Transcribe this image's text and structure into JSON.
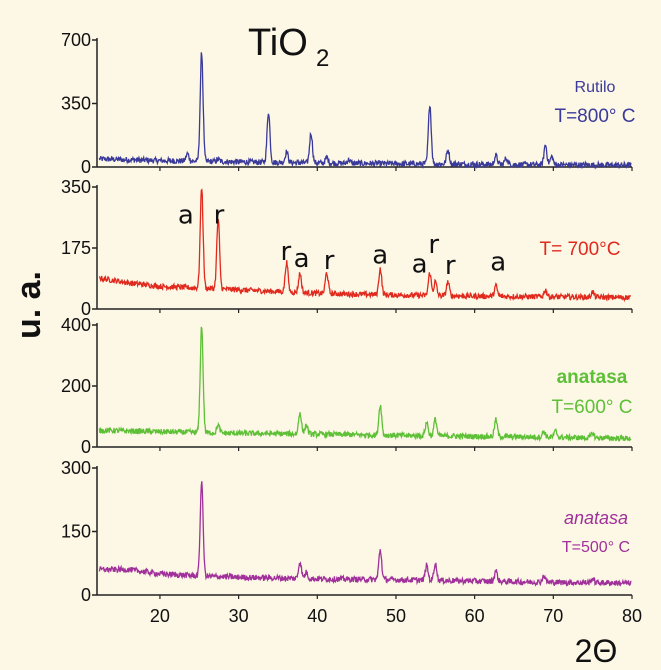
{
  "chart_data": {
    "type": "line",
    "title": "TiO",
    "title_subscript": "2",
    "ylabel": "u. a.",
    "xlabel": "2Θ",
    "xlim": [
      12,
      80
    ],
    "x_ticks": [
      "20",
      "30",
      "40",
      "50",
      "60",
      "70",
      "80"
    ],
    "x_tick_values": [
      20,
      30,
      40,
      50,
      60,
      70,
      80
    ],
    "grid": false,
    "panels": [
      {
        "labels": [
          "Rutilo",
          "T=800° C"
        ],
        "color": "#3a3a9a",
        "ylim": [
          0,
          700
        ],
        "y_ticks": [
          "0",
          "350",
          "700"
        ],
        "y_tick_values": [
          0,
          350,
          700
        ],
        "baseline": [
          [
            12,
            45
          ],
          [
            20,
            35
          ],
          [
            30,
            28
          ],
          [
            40,
            22
          ],
          [
            50,
            18
          ],
          [
            60,
            15
          ],
          [
            70,
            12
          ],
          [
            80,
            10
          ]
        ],
        "peaks": [
          [
            23.5,
            40
          ],
          [
            25.3,
            600
          ],
          [
            27.4,
            12
          ],
          [
            33.8,
            280
          ],
          [
            36.1,
            60
          ],
          [
            39.2,
            165
          ],
          [
            41.2,
            30
          ],
          [
            44.0,
            20
          ],
          [
            54.3,
            330
          ],
          [
            56.6,
            80
          ],
          [
            62.7,
            50
          ],
          [
            64.0,
            35
          ],
          [
            69.0,
            110
          ],
          [
            69.8,
            45
          ]
        ],
        "annotations": []
      },
      {
        "labels": [
          "T= 700°C"
        ],
        "color": "#e02a1e",
        "ylim": [
          0,
          350
        ],
        "y_ticks": [
          "0",
          "175",
          "350"
        ],
        "y_tick_values": [
          0,
          175,
          350
        ],
        "baseline": [
          [
            12,
            90
          ],
          [
            16,
            75
          ],
          [
            20,
            65
          ],
          [
            25,
            60
          ],
          [
            30,
            55
          ],
          [
            40,
            45
          ],
          [
            50,
            40
          ],
          [
            60,
            37
          ],
          [
            70,
            35
          ],
          [
            80,
            33
          ]
        ],
        "peaks": [
          [
            25.3,
            290
          ],
          [
            27.4,
            200
          ],
          [
            36.1,
            85
          ],
          [
            37.8,
            55
          ],
          [
            41.2,
            60
          ],
          [
            48.0,
            75
          ],
          [
            54.3,
            65
          ],
          [
            55.0,
            40
          ],
          [
            56.6,
            40
          ],
          [
            62.7,
            30
          ],
          [
            69.0,
            20
          ],
          [
            75.0,
            15
          ]
        ],
        "annotations": [
          {
            "text": "a",
            "x": 23.3,
            "y": 245
          },
          {
            "text": "r",
            "x": 27.5,
            "y": 245
          },
          {
            "text": "r",
            "x": 36.0,
            "y": 140
          },
          {
            "text": "a",
            "x": 38.0,
            "y": 120
          },
          {
            "text": "r",
            "x": 41.5,
            "y": 115
          },
          {
            "text": "a",
            "x": 48.0,
            "y": 130
          },
          {
            "text": "a",
            "x": 53.0,
            "y": 105
          },
          {
            "text": "r",
            "x": 54.8,
            "y": 160
          },
          {
            "text": "r",
            "x": 56.9,
            "y": 100
          },
          {
            "text": "a",
            "x": 63.0,
            "y": 110
          }
        ]
      },
      {
        "labels": [
          "anatasa",
          "T=600° C"
        ],
        "color": "#5ec036",
        "ylim": [
          0,
          400
        ],
        "y_ticks": [
          "0",
          "200",
          "400"
        ],
        "y_tick_values": [
          0,
          200,
          400
        ],
        "baseline": [
          [
            12,
            55
          ],
          [
            20,
            50
          ],
          [
            30,
            45
          ],
          [
            40,
            42
          ],
          [
            50,
            38
          ],
          [
            60,
            35
          ],
          [
            70,
            32
          ],
          [
            80,
            28
          ]
        ],
        "peaks": [
          [
            25.3,
            350
          ],
          [
            27.4,
            25
          ],
          [
            37.8,
            70
          ],
          [
            38.6,
            30
          ],
          [
            48.0,
            100
          ],
          [
            53.9,
            45
          ],
          [
            55.0,
            55
          ],
          [
            62.7,
            55
          ],
          [
            68.8,
            20
          ],
          [
            70.3,
            20
          ],
          [
            75.0,
            15
          ]
        ],
        "annotations": []
      },
      {
        "labels": [
          "anatasa",
          "T=500° C"
        ],
        "color": "#a0309a",
        "ylim": [
          0,
          300
        ],
        "y_ticks": [
          "0",
          "150",
          "300"
        ],
        "y_tick_values": [
          0,
          150,
          300
        ],
        "baseline": [
          [
            12,
            60
          ],
          [
            16,
            60
          ],
          [
            20,
            50
          ],
          [
            25,
            45
          ],
          [
            30,
            42
          ],
          [
            40,
            38
          ],
          [
            50,
            36
          ],
          [
            60,
            33
          ],
          [
            70,
            30
          ],
          [
            80,
            28
          ]
        ],
        "peaks": [
          [
            25.3,
            225
          ],
          [
            37.8,
            40
          ],
          [
            38.6,
            15
          ],
          [
            48.0,
            70
          ],
          [
            53.9,
            35
          ],
          [
            55.0,
            40
          ],
          [
            62.7,
            25
          ],
          [
            68.8,
            15
          ],
          [
            75.0,
            10
          ]
        ],
        "annotations": []
      }
    ]
  }
}
